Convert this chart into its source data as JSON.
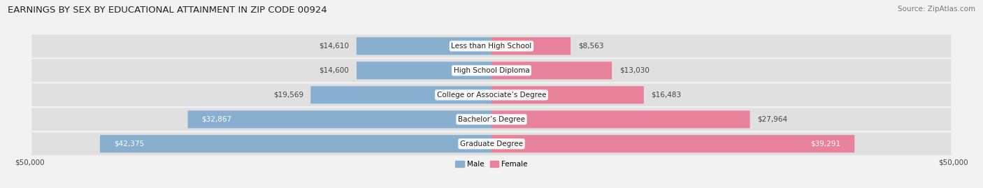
{
  "title": "EARNINGS BY SEX BY EDUCATIONAL ATTAINMENT IN ZIP CODE 00924",
  "source": "Source: ZipAtlas.com",
  "categories": [
    "Less than High School",
    "High School Diploma",
    "College or Associate’s Degree",
    "Bachelor’s Degree",
    "Graduate Degree"
  ],
  "male_values": [
    14610,
    14600,
    19569,
    32867,
    42375
  ],
  "female_values": [
    8563,
    13030,
    16483,
    27964,
    39291
  ],
  "male_color": "#88aed0",
  "female_color": "#e8829a",
  "male_label": "Male",
  "female_label": "Female",
  "axis_max": 50000,
  "bg_color": "#f2f2f2",
  "row_bg_color": "#e0e0e0",
  "title_fontsize": 9.5,
  "source_fontsize": 7.5,
  "value_fontsize": 7.5,
  "category_fontsize": 7.5,
  "bar_height": 0.72
}
